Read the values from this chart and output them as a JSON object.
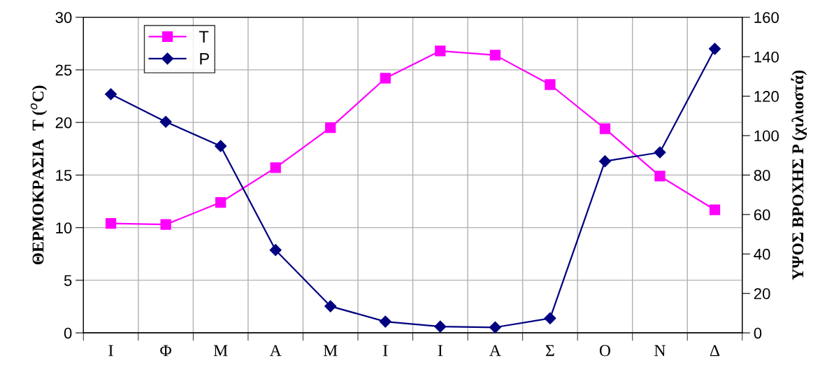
{
  "chart_data": {
    "type": "line",
    "ylabel": "ΘΕΡΜΟΚΡΑΣΙΑ  T ($^{o}$C)",
    "y2label": "ΥΨΟΣ ΒΡΟΧΗΣ P (χιλιοστά)",
    "categories": [
      "Ι",
      "Φ",
      "Μ",
      "Α",
      "Μ",
      "Ι",
      "Ι",
      "Α",
      "Σ",
      "Ο",
      "Ν",
      "Δ"
    ],
    "series": [
      {
        "name": "T",
        "color": "#ff00ff",
        "marker": "square",
        "values": [
          10.4,
          10.3,
          12.4,
          15.7,
          19.5,
          24.2,
          26.8,
          26.4,
          23.6,
          19.4,
          14.9,
          11.7
        ]
      },
      {
        "name": "P",
        "color": "#000080",
        "marker": "diamond",
        "axis": "y2",
        "values": [
          121,
          107,
          94.7,
          42,
          13.5,
          5.7,
          3.2,
          2.8,
          7.4,
          87,
          91.5,
          144
        ]
      }
    ],
    "ylim": [
      0,
      30
    ],
    "yticks": [
      0,
      5,
      10,
      15,
      20,
      25,
      30
    ],
    "y2lim": [
      0,
      160
    ],
    "y2ticks": [
      0,
      20,
      40,
      60,
      80,
      100,
      120,
      140,
      160
    ],
    "grid": true,
    "legend": "top left",
    "line_style": "solid"
  }
}
